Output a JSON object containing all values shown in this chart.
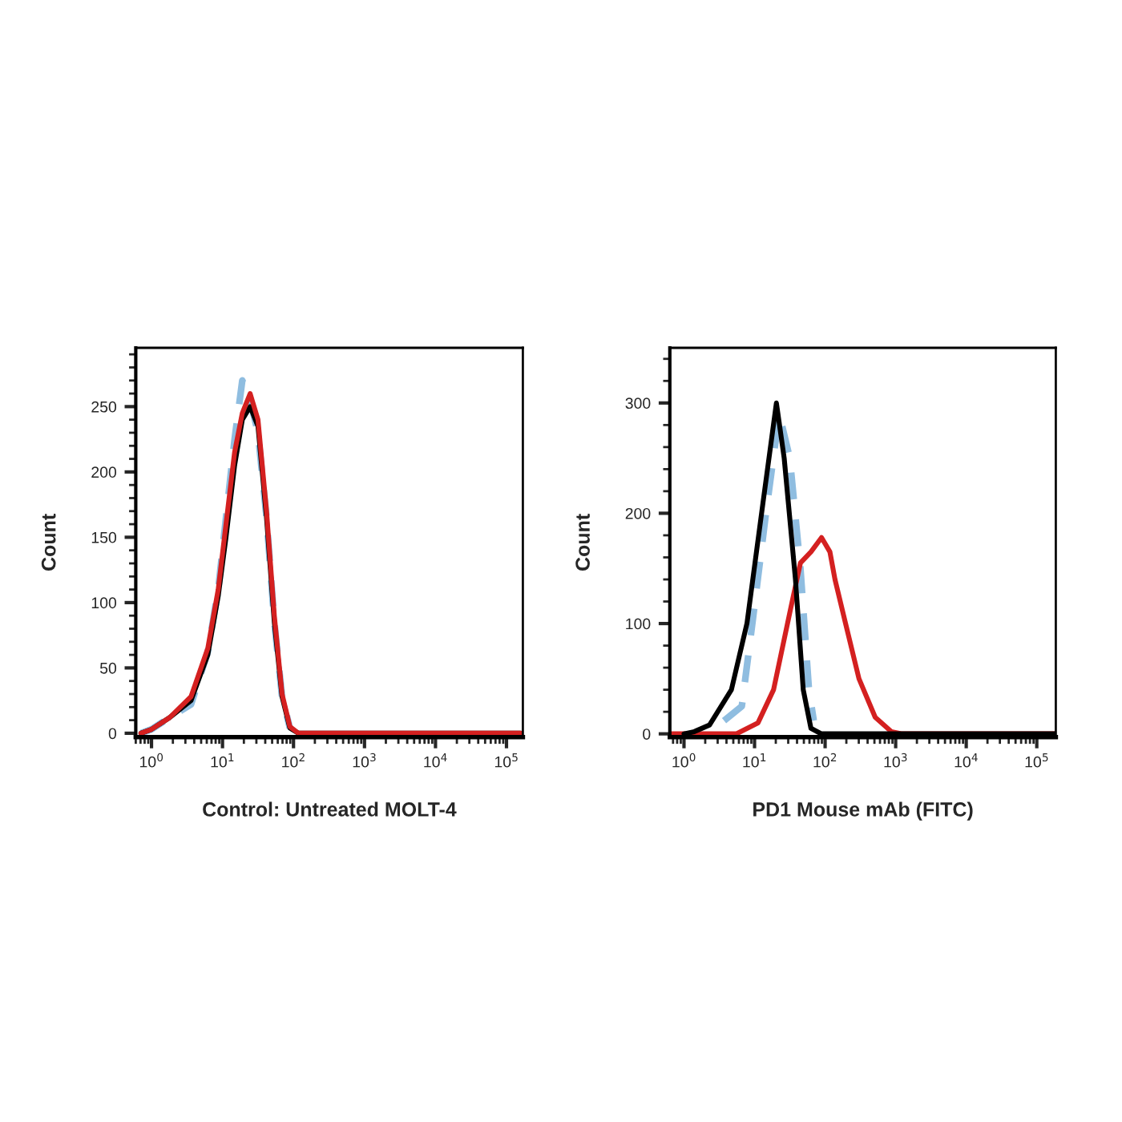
{
  "chart_data": [
    {
      "type": "line",
      "xlabel": "Control: Untreated MOLT-4",
      "ylabel": "Count",
      "log": "x",
      "grid": false,
      "legend": false,
      "xlim": [
        0.6,
        170000
      ],
      "ylim": [
        -3,
        295
      ],
      "xticks": [
        {
          "value": 1,
          "label": "10$^{0}$"
        },
        {
          "value": 10,
          "label": "10$^{1}$"
        },
        {
          "value": 100,
          "label": "10$^{2}$"
        },
        {
          "value": 1000,
          "label": "10$^{3}$"
        },
        {
          "value": 10000,
          "label": "10$^{4}$"
        },
        {
          "value": 100000,
          "label": "10$^{5}$"
        }
      ],
      "yticks": [
        0,
        50,
        100,
        150,
        200,
        250
      ],
      "series": [
        {
          "color": "#8fbde0",
          "line_style": "dashed",
          "x": [
            0.71,
            1,
            1.8,
            3.6,
            6.2,
            8.7,
            11.2,
            14.8,
            19,
            24.5,
            31.6,
            41.7,
            53.7,
            69,
            89
          ],
          "values": [
            0,
            3,
            12,
            22,
            62,
            110,
            165,
            225,
            270,
            255,
            230,
            165,
            85,
            28,
            4
          ]
        },
        {
          "color": "#000000",
          "line_style": "solid",
          "x": [
            0.71,
            1,
            1.8,
            3.6,
            6.2,
            8.7,
            11.2,
            14.8,
            19,
            24.5,
            31.6,
            41.7,
            53.7,
            69,
            89,
            117,
            158000
          ],
          "values": [
            0,
            3,
            12,
            25,
            60,
            105,
            150,
            205,
            240,
            250,
            235,
            165,
            85,
            28,
            4,
            0,
            0
          ]
        },
        {
          "color": "#d42020",
          "line_style": "solid",
          "x": [
            0.71,
            1,
            1.8,
            3.6,
            6.2,
            8.7,
            11.2,
            14.8,
            19,
            24.5,
            31.6,
            41.7,
            53.7,
            69,
            89,
            117,
            158000
          ],
          "values": [
            0,
            3,
            12,
            28,
            65,
            110,
            160,
            215,
            245,
            260,
            240,
            170,
            90,
            30,
            5,
            0,
            0
          ]
        }
      ]
    },
    {
      "type": "line",
      "xlabel": "PD1 Mouse mAb (FITC)",
      "ylabel": "Count",
      "log": "x",
      "grid": false,
      "legend": false,
      "xlim": [
        0.63,
        186000
      ],
      "ylim": [
        -3,
        350
      ],
      "xticks": [
        {
          "value": 1,
          "label": "10$^{0}$"
        },
        {
          "value": 10,
          "label": "10$^{1}$"
        },
        {
          "value": 100,
          "label": "10$^{2}$"
        },
        {
          "value": 1000,
          "label": "10$^{3}$"
        },
        {
          "value": 10000,
          "label": "10$^{4}$"
        },
        {
          "value": 100000,
          "label": "10$^{5}$"
        }
      ],
      "yticks": [
        0,
        100,
        200,
        300
      ],
      "series": [
        {
          "color": "#8fbde0",
          "line_style": "dashed",
          "x": [
            3.7,
            6.6,
            9.3,
            14.5,
            22.4,
            31.6,
            44.7,
            59,
            69
          ],
          "values": [
            12,
            25,
            100,
            200,
            290,
            250,
            150,
            40,
            12
          ]
        },
        {
          "color": "#d42020",
          "line_style": "solid",
          "x": [
            0.63,
            5.5,
            11.2,
            18.6,
            31.6,
            44.7,
            63,
            89,
            117,
            138,
            195,
            302,
            513,
            871,
            1230,
            186000
          ],
          "values": [
            0,
            0,
            10,
            40,
            110,
            155,
            165,
            178,
            165,
            140,
            100,
            50,
            15,
            2,
            0,
            0
          ]
        },
        {
          "color": "#000000",
          "line_style": "solid",
          "x": [
            1,
            1.4,
            2.3,
            4.7,
            7.8,
            13.2,
            20.4,
            26.3,
            38,
            49,
            63,
            89,
            186000
          ],
          "values": [
            0,
            2,
            8,
            40,
            100,
            210,
            300,
            250,
            140,
            40,
            5,
            0,
            0
          ]
        }
      ]
    }
  ]
}
